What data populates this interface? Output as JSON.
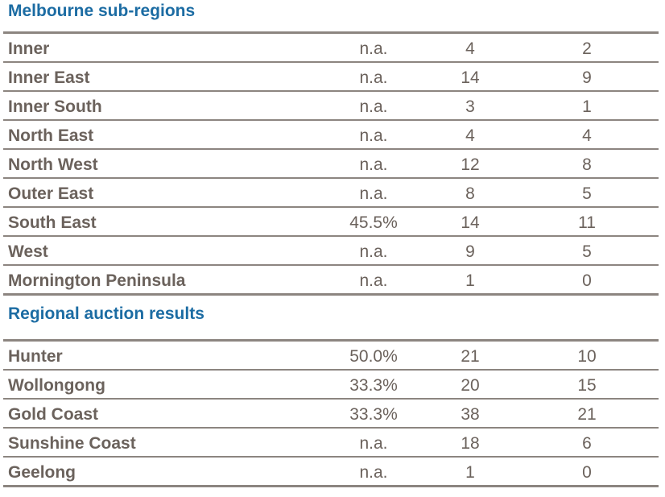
{
  "melbourne": {
    "title": "Melbourne sub-regions",
    "rows": [
      {
        "name": "Inner",
        "rate": "n.a.",
        "total": "4",
        "sold": "2"
      },
      {
        "name": "Inner East",
        "rate": "n.a.",
        "total": "14",
        "sold": "9"
      },
      {
        "name": "Inner South",
        "rate": "n.a.",
        "total": "3",
        "sold": "1"
      },
      {
        "name": "North East",
        "rate": "n.a.",
        "total": "4",
        "sold": "4"
      },
      {
        "name": "North West",
        "rate": "n.a.",
        "total": "12",
        "sold": "8"
      },
      {
        "name": "Outer East",
        "rate": "n.a.",
        "total": "8",
        "sold": "5"
      },
      {
        "name": "South East",
        "rate": "45.5%",
        "total": "14",
        "sold": "11"
      },
      {
        "name": "West",
        "rate": "n.a.",
        "total": "9",
        "sold": "5"
      },
      {
        "name": "Mornington Peninsula",
        "rate": "n.a.",
        "total": "1",
        "sold": "0"
      }
    ]
  },
  "regional": {
    "title": "Regional auction results",
    "rows": [
      {
        "name": "Hunter",
        "rate": "50.0%",
        "total": "21",
        "sold": "10"
      },
      {
        "name": "Wollongong",
        "rate": "33.3%",
        "total": "20",
        "sold": "15"
      },
      {
        "name": "Gold Coast",
        "rate": "33.3%",
        "total": "38",
        "sold": "21"
      },
      {
        "name": "Sunshine Coast",
        "rate": "n.a.",
        "total": "18",
        "sold": "6"
      },
      {
        "name": "Geelong",
        "rate": "n.a.",
        "total": "1",
        "sold": "0"
      }
    ]
  },
  "colors": {
    "heading": "#1c6ca3",
    "text": "#6b625c",
    "rule": "#8c8580"
  }
}
